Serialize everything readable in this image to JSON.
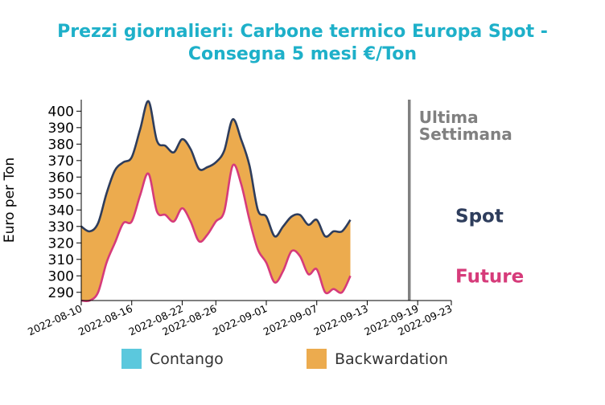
{
  "chart_data": {
    "type": "area",
    "title_lines": [
      "Prezzi giornalieri: Carbone termico Europa Spot -",
      "Consegna 5 mesi €/Ton"
    ],
    "ylabel": "Euro per Ton",
    "xlabel": "",
    "ylim": [
      285,
      407
    ],
    "yticks": [
      290,
      300,
      310,
      320,
      330,
      340,
      350,
      360,
      370,
      380,
      390,
      400
    ],
    "xlim": [
      "2022-08-10",
      "2022-09-23"
    ],
    "xticks": [
      "2022-08-10",
      "2022-08-16",
      "2022-08-22",
      "2022-08-26",
      "2022-09-01",
      "2022-09-07",
      "2022-09-13",
      "2022-09-19",
      "2022-09-23"
    ],
    "grid": false,
    "legend": {
      "placement": "bottom",
      "items": [
        {
          "label": "Contango",
          "color": "#5bc8dd"
        },
        {
          "label": "Backwardation",
          "color": "#ecab4e"
        }
      ]
    },
    "annotation": {
      "lines": [
        "Ultima",
        "Settimana"
      ],
      "date": "2022-09-18",
      "color": "#808080"
    },
    "series": [
      {
        "name": "Spot",
        "color": "#2e3d5c",
        "points": [
          [
            "2022-08-10",
            330
          ],
          [
            "2022-08-11",
            327
          ],
          [
            "2022-08-12",
            332
          ],
          [
            "2022-08-13",
            350
          ],
          [
            "2022-08-14",
            364
          ],
          [
            "2022-08-15",
            369
          ],
          [
            "2022-08-16",
            372
          ],
          [
            "2022-08-17",
            389
          ],
          [
            "2022-08-18",
            406
          ],
          [
            "2022-08-19",
            382
          ],
          [
            "2022-08-20",
            379
          ],
          [
            "2022-08-21",
            375
          ],
          [
            "2022-08-22",
            383
          ],
          [
            "2022-08-23",
            377
          ],
          [
            "2022-08-24",
            365
          ],
          [
            "2022-08-25",
            366
          ],
          [
            "2022-08-26",
            369
          ],
          [
            "2022-08-27",
            376
          ],
          [
            "2022-08-28",
            395
          ],
          [
            "2022-08-29",
            383
          ],
          [
            "2022-08-30",
            367
          ],
          [
            "2022-08-31",
            340
          ],
          [
            "2022-09-01",
            336
          ],
          [
            "2022-09-02",
            324
          ],
          [
            "2022-09-03",
            330
          ],
          [
            "2022-09-04",
            336
          ],
          [
            "2022-09-05",
            337
          ],
          [
            "2022-09-06",
            331
          ],
          [
            "2022-09-07",
            334
          ],
          [
            "2022-09-08",
            324
          ],
          [
            "2022-09-09",
            327
          ],
          [
            "2022-09-10",
            327
          ],
          [
            "2022-09-11",
            334
          ]
        ]
      },
      {
        "name": "Future",
        "color": "#d63b7a",
        "points": [
          [
            "2022-08-10",
            285
          ],
          [
            "2022-08-11",
            285
          ],
          [
            "2022-08-12",
            290
          ],
          [
            "2022-08-13",
            308
          ],
          [
            "2022-08-14",
            320
          ],
          [
            "2022-08-15",
            332
          ],
          [
            "2022-08-16",
            333
          ],
          [
            "2022-08-17",
            349
          ],
          [
            "2022-08-18",
            362
          ],
          [
            "2022-08-19",
            339
          ],
          [
            "2022-08-20",
            337
          ],
          [
            "2022-08-21",
            333
          ],
          [
            "2022-08-22",
            341
          ],
          [
            "2022-08-23",
            333
          ],
          [
            "2022-08-24",
            321
          ],
          [
            "2022-08-25",
            325
          ],
          [
            "2022-08-26",
            333
          ],
          [
            "2022-08-27",
            339
          ],
          [
            "2022-08-28",
            367
          ],
          [
            "2022-08-29",
            356
          ],
          [
            "2022-08-30",
            334
          ],
          [
            "2022-08-31",
            316
          ],
          [
            "2022-09-01",
            308
          ],
          [
            "2022-09-02",
            296
          ],
          [
            "2022-09-03",
            303
          ],
          [
            "2022-09-04",
            315
          ],
          [
            "2022-09-05",
            312
          ],
          [
            "2022-09-06",
            301
          ],
          [
            "2022-09-07",
            304
          ],
          [
            "2022-09-08",
            290
          ],
          [
            "2022-09-09",
            292
          ],
          [
            "2022-09-10",
            290
          ],
          [
            "2022-09-11",
            300
          ]
        ]
      }
    ]
  }
}
